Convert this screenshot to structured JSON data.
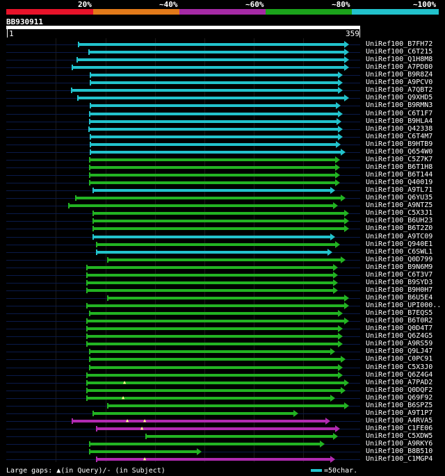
{
  "scale": {
    "labels": [
      "20%",
      "~40%",
      "~60%",
      "~80%",
      "~100%"
    ],
    "colors": [
      "#e8132a",
      "#e27a1a",
      "#a52aa5",
      "#1ba31b",
      "#22c2cc"
    ]
  },
  "query": {
    "name": "BB930911",
    "start": "1",
    "end": "359"
  },
  "colors": {
    "cyan": "#22c2cc",
    "green": "#22b322",
    "magenta": "#b02ab0"
  },
  "rows": [
    {
      "name": "UniRef100_B7FH72",
      "start": 112,
      "end": 497,
      "color": "cyan"
    },
    {
      "name": "UniRef100_C6T215",
      "start": 127,
      "end": 497,
      "color": "cyan"
    },
    {
      "name": "UniRef100_Q1H8M8",
      "start": 110,
      "end": 497,
      "color": "cyan"
    },
    {
      "name": "UniRef100_A7PD80",
      "start": 103,
      "end": 497,
      "color": "cyan"
    },
    {
      "name": "UniRef100_B9R8Z4",
      "start": 129,
      "end": 488,
      "color": "cyan"
    },
    {
      "name": "UniRef100_A9PCV0",
      "start": 129,
      "end": 488,
      "color": "cyan"
    },
    {
      "name": "UniRef100_A7QBT2",
      "start": 102,
      "end": 488,
      "color": "cyan"
    },
    {
      "name": "UniRef100_Q9XHD5",
      "start": 111,
      "end": 497,
      "color": "cyan"
    },
    {
      "name": "UniRef100_B9RMN3",
      "start": 129,
      "end": 485,
      "color": "cyan"
    },
    {
      "name": "UniRef100_C6T1F7",
      "start": 128,
      "end": 488,
      "color": "cyan"
    },
    {
      "name": "UniRef100_B9HLA4",
      "start": 128,
      "end": 486,
      "color": "cyan"
    },
    {
      "name": "UniRef100_Q42338",
      "start": 127,
      "end": 488,
      "color": "cyan"
    },
    {
      "name": "UniRef100_C6T4M7",
      "start": 129,
      "end": 488,
      "color": "cyan"
    },
    {
      "name": "UniRef100_B9HTB9",
      "start": 129,
      "end": 485,
      "color": "cyan"
    },
    {
      "name": "UniRef100_Q654W0",
      "start": 129,
      "end": 492,
      "color": "cyan"
    },
    {
      "name": "UniRef100_C5Z7K7",
      "start": 128,
      "end": 484,
      "color": "green"
    },
    {
      "name": "UniRef100_B6T1H8",
      "start": 128,
      "end": 484,
      "color": "green"
    },
    {
      "name": "UniRef100_B6T144",
      "start": 128,
      "end": 484,
      "color": "green"
    },
    {
      "name": "UniRef100_Q40019",
      "start": 128,
      "end": 484,
      "color": "green"
    },
    {
      "name": "UniRef100_A9TL71",
      "start": 133,
      "end": 477,
      "color": "cyan"
    },
    {
      "name": "UniRef100_Q6YU35",
      "start": 108,
      "end": 492,
      "color": "green"
    },
    {
      "name": "UniRef100_A9NTZ5",
      "start": 98,
      "end": 481,
      "color": "green"
    },
    {
      "name": "UniRef100_C5X3J1",
      "start": 133,
      "end": 497,
      "color": "green"
    },
    {
      "name": "UniRef100_B6UH23",
      "start": 133,
      "end": 497,
      "color": "green"
    },
    {
      "name": "UniRef100_B6T2Z0",
      "start": 133,
      "end": 497,
      "color": "green"
    },
    {
      "name": "UniRef100_A9TC09",
      "start": 133,
      "end": 477,
      "color": "cyan"
    },
    {
      "name": "UniRef100_Q940E1",
      "start": 138,
      "end": 484,
      "color": "green"
    },
    {
      "name": "UniRef100_C6SWL1",
      "start": 138,
      "end": 473,
      "color": "cyan"
    },
    {
      "name": "UniRef100_Q0D799",
      "start": 154,
      "end": 492,
      "color": "green"
    },
    {
      "name": "UniRef100_B9N6M9",
      "start": 124,
      "end": 481,
      "color": "green"
    },
    {
      "name": "UniRef100_C6T3V7",
      "start": 124,
      "end": 481,
      "color": "green"
    },
    {
      "name": "UniRef100_B9SYD3",
      "start": 124,
      "end": 481,
      "color": "green"
    },
    {
      "name": "UniRef100_B9H0H7",
      "start": 124,
      "end": 481,
      "color": "green"
    },
    {
      "name": "UniRef100_B6U5E4",
      "start": 154,
      "end": 497,
      "color": "green"
    },
    {
      "name": "UniRef100_UPI000..",
      "start": 124,
      "end": 497,
      "color": "green"
    },
    {
      "name": "UniRef100_B7EQS5",
      "start": 128,
      "end": 488,
      "color": "green"
    },
    {
      "name": "UniRef100_B6T0R2",
      "start": 124,
      "end": 497,
      "color": "green"
    },
    {
      "name": "UniRef100_Q0D4T7",
      "start": 124,
      "end": 488,
      "color": "green"
    },
    {
      "name": "UniRef100_Q6Z4G5",
      "start": 124,
      "end": 488,
      "color": "green"
    },
    {
      "name": "UniRef100_A9RS59",
      "start": 124,
      "end": 488,
      "color": "green"
    },
    {
      "name": "UniRef100_Q9LJ47",
      "start": 128,
      "end": 477,
      "color": "green"
    },
    {
      "name": "UniRef100_C0PC91",
      "start": 128,
      "end": 492,
      "color": "green"
    },
    {
      "name": "UniRef100_C5X3J0",
      "start": 128,
      "end": 488,
      "color": "green"
    },
    {
      "name": "UniRef100_Q6Z4G4",
      "start": 124,
      "end": 488,
      "color": "green"
    },
    {
      "name": "UniRef100_A7PAD2",
      "start": 124,
      "end": 497,
      "color": "green",
      "gaps": [
        180
      ]
    },
    {
      "name": "UniRef100_Q0DQF2",
      "start": 124,
      "end": 492,
      "color": "green"
    },
    {
      "name": "UniRef100_Q69F92",
      "start": 124,
      "end": 477,
      "color": "green",
      "gaps": [
        178
      ]
    },
    {
      "name": "UniRef100_B6SPZ5",
      "start": 154,
      "end": 497,
      "color": "green"
    },
    {
      "name": "UniRef100_A9T1P7",
      "start": 133,
      "end": 424,
      "color": "green"
    },
    {
      "name": "UniRef100_A4RVA5",
      "start": 103,
      "end": 470,
      "color": "magenta",
      "gaps": [
        184,
        209
      ]
    },
    {
      "name": "UniRef100_C1FE06",
      "start": 138,
      "end": 484,
      "color": "magenta",
      "gaps": [
        205
      ]
    },
    {
      "name": "UniRef100_C5XDW5",
      "start": 209,
      "end": 481,
      "color": "green"
    },
    {
      "name": "UniRef100_A9RKY6",
      "start": 128,
      "end": 462,
      "color": "green"
    },
    {
      "name": "UniRef100_B8B510",
      "start": 128,
      "end": 285,
      "color": "green"
    },
    {
      "name": "UniRef100_C1MGP4",
      "start": 138,
      "end": 477,
      "color": "magenta",
      "gaps": [
        209
      ]
    }
  ],
  "legend": {
    "left": "Large gaps: ▲(in Query)/- (in Subject)",
    "right": "=50char."
  }
}
